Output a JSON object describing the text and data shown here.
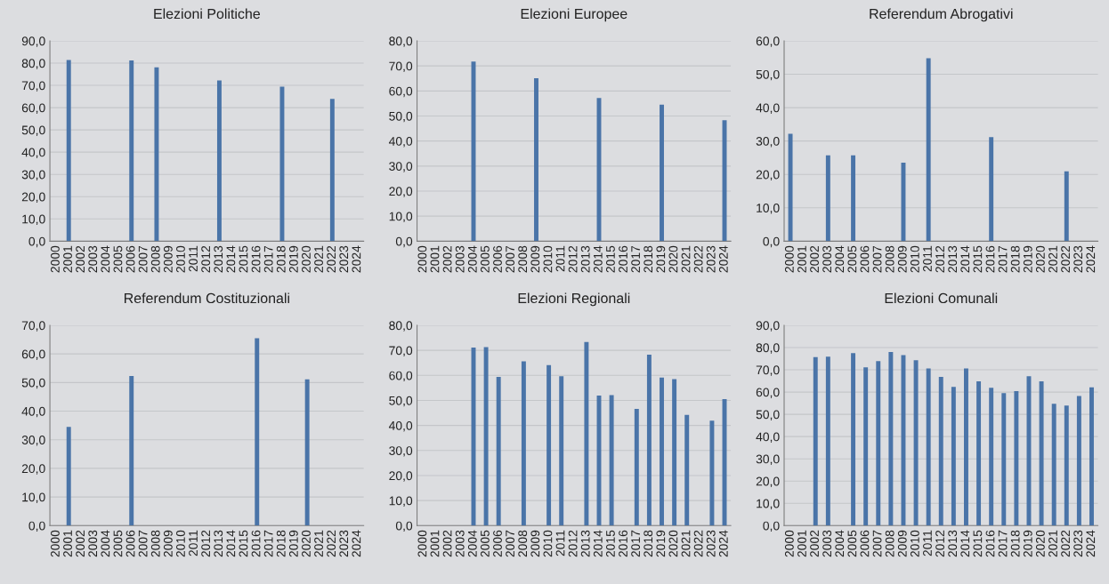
{
  "chart_data": [
    {
      "type": "bar",
      "title": "Elezioni Politiche",
      "categories": [
        "2000",
        "2001",
        "2002",
        "2003",
        "2004",
        "2005",
        "2006",
        "2007",
        "2008",
        "2009",
        "2010",
        "2011",
        "2012",
        "2013",
        "2014",
        "2015",
        "2016",
        "2017",
        "2018",
        "2019",
        "2020",
        "2021",
        "2022",
        "2023",
        "2024"
      ],
      "series": [
        {
          "color": "#4a74a8",
          "values": [
            null,
            81.4,
            null,
            null,
            null,
            null,
            81.2,
            null,
            78.1,
            null,
            null,
            null,
            null,
            72.2,
            null,
            null,
            null,
            null,
            69.4,
            null,
            null,
            null,
            63.9,
            null,
            null
          ]
        }
      ],
      "ylim": [
        0,
        90
      ],
      "yticks": [
        {
          "value": 0,
          "label": "0,0"
        },
        {
          "value": 10,
          "label": "10,0"
        },
        {
          "value": 20,
          "label": "20,0"
        },
        {
          "value": 30,
          "label": "30,0"
        },
        {
          "value": 40,
          "label": "40,0"
        },
        {
          "value": 50,
          "label": "50,0"
        },
        {
          "value": 60,
          "label": "60,0"
        },
        {
          "value": 70,
          "label": "70,0"
        },
        {
          "value": 80,
          "label": "80,0"
        },
        {
          "value": 90,
          "label": "90,0"
        }
      ],
      "grid": "y"
    },
    {
      "type": "bar",
      "title": "Elezioni Europee",
      "categories": [
        "2000",
        "2001",
        "2002",
        "2003",
        "2004",
        "2005",
        "2006",
        "2007",
        "2008",
        "2009",
        "2010",
        "2011",
        "2012",
        "2013",
        "2014",
        "2015",
        "2016",
        "2017",
        "2018",
        "2019",
        "2020",
        "2021",
        "2022",
        "2023",
        "2024"
      ],
      "series": [
        {
          "color": "#4a74a8",
          "values": [
            null,
            null,
            null,
            null,
            71.7,
            null,
            null,
            null,
            null,
            65.1,
            null,
            null,
            null,
            null,
            57.2,
            null,
            null,
            null,
            null,
            54.5,
            null,
            null,
            null,
            null,
            48.3
          ]
        }
      ],
      "ylim": [
        0,
        80
      ],
      "yticks": [
        {
          "value": 0,
          "label": "0,0"
        },
        {
          "value": 10,
          "label": "10,0"
        },
        {
          "value": 20,
          "label": "20,0"
        },
        {
          "value": 30,
          "label": "30,0"
        },
        {
          "value": 40,
          "label": "40,0"
        },
        {
          "value": 50,
          "label": "50,0"
        },
        {
          "value": 60,
          "label": "60,0"
        },
        {
          "value": 70,
          "label": "70,0"
        },
        {
          "value": 80,
          "label": "80,0"
        }
      ],
      "grid": "y"
    },
    {
      "type": "bar",
      "title": "Referendum Abrogativi",
      "categories": [
        "2000",
        "2001",
        "2002",
        "2003",
        "2004",
        "2005",
        "2006",
        "2007",
        "2008",
        "2009",
        "2010",
        "2011",
        "2012",
        "2013",
        "2014",
        "2015",
        "2016",
        "2017",
        "2018",
        "2019",
        "2020",
        "2021",
        "2022",
        "2023",
        "2024"
      ],
      "series": [
        {
          "color": "#4a74a8",
          "values": [
            32.2,
            null,
            null,
            25.7,
            null,
            25.7,
            null,
            null,
            null,
            23.5,
            null,
            54.8,
            null,
            null,
            null,
            null,
            31.2,
            null,
            null,
            null,
            null,
            null,
            20.9,
            null,
            null
          ]
        }
      ],
      "ylim": [
        0,
        60
      ],
      "yticks": [
        {
          "value": 0,
          "label": "0,0"
        },
        {
          "value": 10,
          "label": "10,0"
        },
        {
          "value": 20,
          "label": "20,0"
        },
        {
          "value": 30,
          "label": "30,0"
        },
        {
          "value": 40,
          "label": "40,0"
        },
        {
          "value": 50,
          "label": "50,0"
        },
        {
          "value": 60,
          "label": "60,0"
        }
      ],
      "grid": "y"
    },
    {
      "type": "bar",
      "title": "Referendum Costituzionali",
      "categories": [
        "2000",
        "2001",
        "2002",
        "2003",
        "2004",
        "2005",
        "2006",
        "2007",
        "2008",
        "2009",
        "2010",
        "2011",
        "2012",
        "2013",
        "2014",
        "2015",
        "2016",
        "2017",
        "2018",
        "2019",
        "2020",
        "2021",
        "2022",
        "2023",
        "2024"
      ],
      "series": [
        {
          "color": "#4a74a8",
          "values": [
            null,
            34.5,
            null,
            null,
            null,
            null,
            52.3,
            null,
            null,
            null,
            null,
            null,
            null,
            null,
            null,
            null,
            65.5,
            null,
            null,
            null,
            51.1,
            null,
            null,
            null,
            null
          ]
        }
      ],
      "ylim": [
        0,
        70
      ],
      "yticks": [
        {
          "value": 0,
          "label": "0,0"
        },
        {
          "value": 10,
          "label": "10,0"
        },
        {
          "value": 20,
          "label": "20,0"
        },
        {
          "value": 30,
          "label": "30,0"
        },
        {
          "value": 40,
          "label": "40,0"
        },
        {
          "value": 50,
          "label": "50,0"
        },
        {
          "value": 60,
          "label": "60,0"
        },
        {
          "value": 70,
          "label": "70,0"
        }
      ],
      "grid": "y"
    },
    {
      "type": "bar",
      "title": "Elezioni Regionali",
      "categories": [
        "2000",
        "2001",
        "2002",
        "2003",
        "2004",
        "2005",
        "2006",
        "2007",
        "2008",
        "2009",
        "2010",
        "2011",
        "2012",
        "2013",
        "2014",
        "2015",
        "2016",
        "2017",
        "2018",
        "2019",
        "2020",
        "2021",
        "2022",
        "2023",
        "2024"
      ],
      "series": [
        {
          "color": "#4a74a8",
          "values": [
            null,
            null,
            null,
            null,
            71.1,
            71.3,
            59.4,
            null,
            65.6,
            null,
            64.1,
            59.7,
            null,
            73.3,
            51.9,
            52.1,
            null,
            46.6,
            68.3,
            59.1,
            58.5,
            44.2,
            null,
            41.9,
            50.5
          ]
        }
      ],
      "ylim": [
        0,
        80
      ],
      "yticks": [
        {
          "value": 0,
          "label": "0,0"
        },
        {
          "value": 10,
          "label": "10,0"
        },
        {
          "value": 20,
          "label": "20,0"
        },
        {
          "value": 30,
          "label": "30,0"
        },
        {
          "value": 40,
          "label": "40,0"
        },
        {
          "value": 50,
          "label": "50,0"
        },
        {
          "value": 60,
          "label": "60,0"
        },
        {
          "value": 70,
          "label": "70,0"
        },
        {
          "value": 80,
          "label": "80,0"
        }
      ],
      "grid": "y"
    },
    {
      "type": "bar",
      "title": "Elezioni Comunali",
      "categories": [
        "2000",
        "2001",
        "2002",
        "2003",
        "2004",
        "2005",
        "2006",
        "2007",
        "2008",
        "2009",
        "2010",
        "2011",
        "2012",
        "2013",
        "2014",
        "2015",
        "2016",
        "2017",
        "2018",
        "2019",
        "2020",
        "2021",
        "2022",
        "2023",
        "2024"
      ],
      "series": [
        {
          "color": "#4a74a8",
          "values": [
            null,
            null,
            75.7,
            75.9,
            null,
            77.5,
            71.1,
            73.9,
            78.0,
            76.6,
            74.3,
            70.6,
            66.8,
            62.3,
            70.6,
            64.8,
            61.9,
            59.5,
            60.4,
            67.1,
            64.8,
            54.7,
            53.9,
            58.2,
            62.1
          ]
        }
      ],
      "ylim": [
        0,
        90
      ],
      "yticks": [
        {
          "value": 0,
          "label": "0,0"
        },
        {
          "value": 10,
          "label": "10,0"
        },
        {
          "value": 20,
          "label": "20,0"
        },
        {
          "value": 30,
          "label": "30,0"
        },
        {
          "value": 40,
          "label": "40,0"
        },
        {
          "value": 50,
          "label": "50,0"
        },
        {
          "value": 60,
          "label": "60,0"
        },
        {
          "value": 70,
          "label": "70,0"
        },
        {
          "value": 80,
          "label": "80,0"
        },
        {
          "value": 90,
          "label": "90,0"
        }
      ],
      "grid": "y"
    }
  ]
}
